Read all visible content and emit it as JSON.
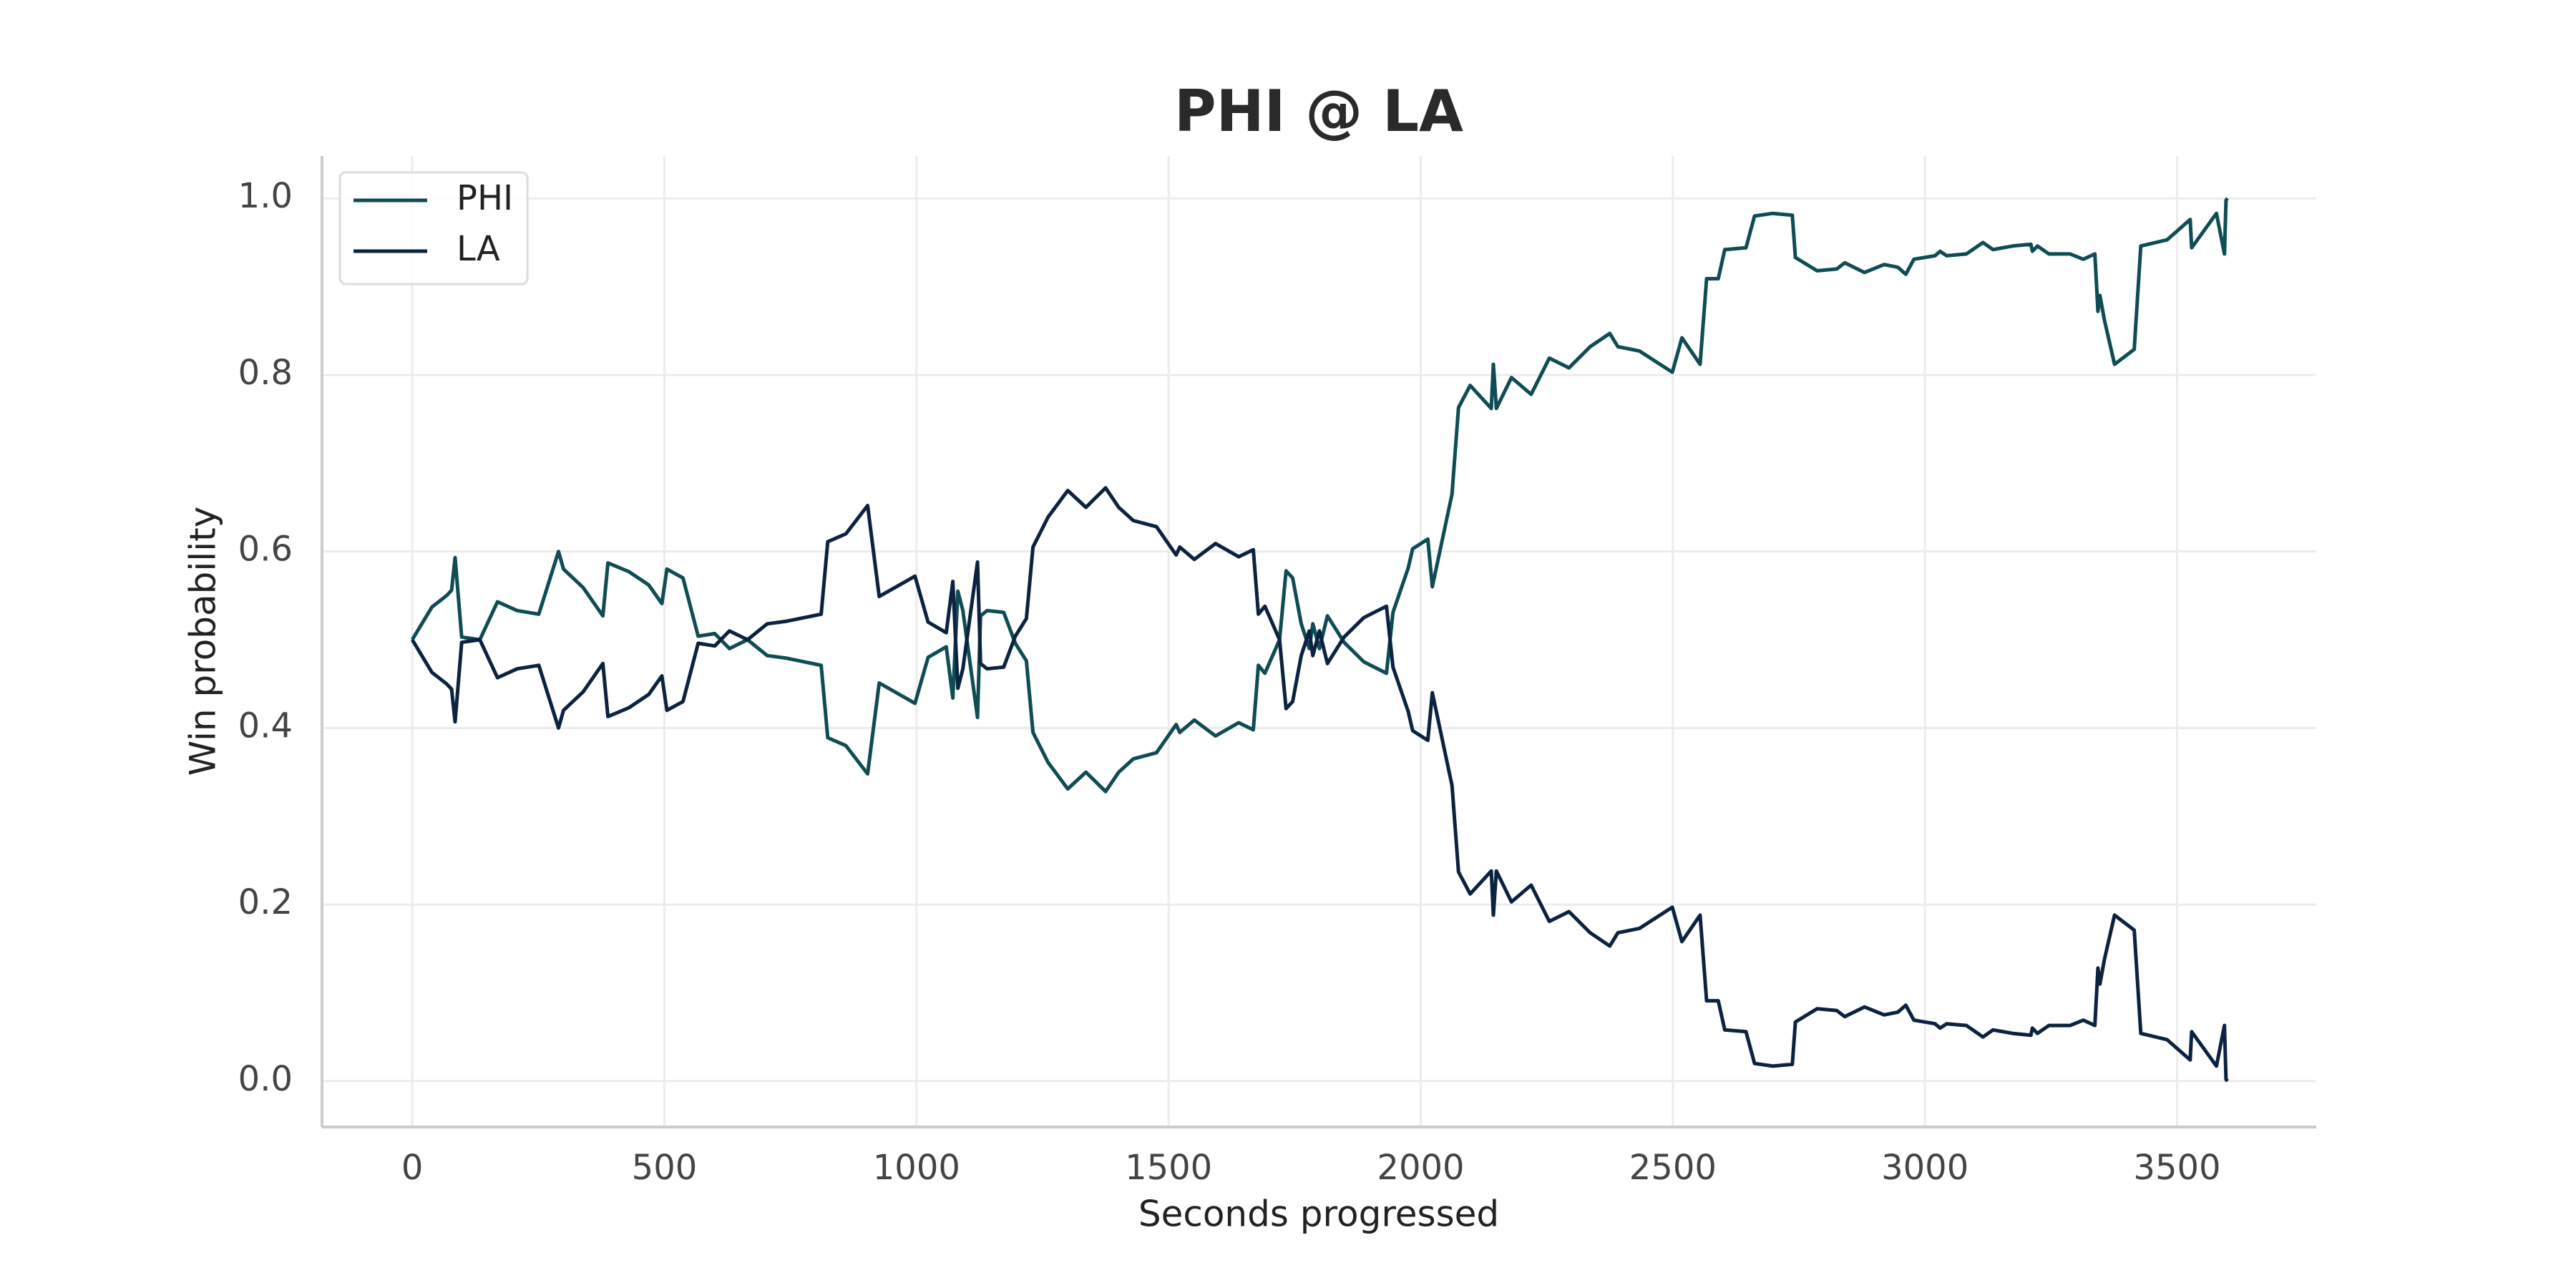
{
  "chart_data": {
    "type": "line",
    "title": "PHI @ LA",
    "x_label": "Seconds progressed",
    "y_label": "Win probability",
    "x": [
      0,
      39,
      68,
      78,
      85,
      98,
      134,
      169,
      208,
      251,
      290,
      300,
      339,
      378,
      388,
      430,
      469,
      495,
      505,
      537,
      567,
      600,
      629,
      665,
      704,
      743,
      811,
      824,
      860,
      903,
      926,
      997,
      1023,
      1059,
      1072,
      1082,
      1092,
      1121,
      1127,
      1140,
      1173,
      1196,
      1218,
      1231,
      1261,
      1300,
      1336,
      1375,
      1401,
      1430,
      1476,
      1515,
      1522,
      1551,
      1593,
      1639,
      1668,
      1678,
      1691,
      1720,
      1733,
      1746,
      1763,
      1779,
      1786,
      1799,
      1815,
      1848,
      1887,
      1932,
      1945,
      1975,
      1984,
      2014,
      2023,
      2062,
      2075,
      2098,
      2140,
      2144,
      2150,
      2180,
      2219,
      2255,
      2294,
      2336,
      2375,
      2391,
      2434,
      2499,
      2518,
      2554,
      2567,
      2590,
      2603,
      2645,
      2662,
      2698,
      2737,
      2743,
      2786,
      2825,
      2841,
      2880,
      2919,
      2946,
      2962,
      2978,
      3020,
      3030,
      3043,
      3082,
      3115,
      3135,
      3174,
      3210,
      3213,
      3223,
      3246,
      3288,
      3314,
      3337,
      3343,
      3347,
      3356,
      3376,
      3415,
      3428,
      3480,
      3526,
      3529,
      3578,
      3594,
      3597,
      3600
    ],
    "series": [
      {
        "name": "PHI",
        "color": "#0f4c54",
        "values": [
          0.5,
          0.537,
          0.55,
          0.556,
          0.593,
          0.503,
          0.5,
          0.543,
          0.533,
          0.529,
          0.6,
          0.58,
          0.559,
          0.527,
          0.587,
          0.577,
          0.562,
          0.541,
          0.58,
          0.57,
          0.504,
          0.507,
          0.49,
          0.5,
          0.482,
          0.479,
          0.471,
          0.389,
          0.38,
          0.348,
          0.451,
          0.428,
          0.48,
          0.492,
          0.434,
          0.555,
          0.533,
          0.412,
          0.527,
          0.533,
          0.531,
          0.496,
          0.476,
          0.395,
          0.361,
          0.331,
          0.35,
          0.328,
          0.35,
          0.365,
          0.372,
          0.404,
          0.395,
          0.409,
          0.391,
          0.406,
          0.398,
          0.471,
          0.462,
          0.5,
          0.578,
          0.57,
          0.518,
          0.49,
          0.518,
          0.49,
          0.527,
          0.497,
          0.475,
          0.462,
          0.531,
          0.581,
          0.603,
          0.614,
          0.56,
          0.665,
          0.763,
          0.788,
          0.762,
          0.812,
          0.762,
          0.797,
          0.778,
          0.819,
          0.808,
          0.832,
          0.847,
          0.832,
          0.827,
          0.803,
          0.842,
          0.812,
          0.909,
          0.909,
          0.942,
          0.944,
          0.98,
          0.983,
          0.981,
          0.933,
          0.918,
          0.92,
          0.927,
          0.916,
          0.925,
          0.922,
          0.914,
          0.931,
          0.935,
          0.94,
          0.935,
          0.937,
          0.95,
          0.942,
          0.946,
          0.948,
          0.94,
          0.946,
          0.937,
          0.937,
          0.931,
          0.937,
          0.872,
          0.89,
          0.862,
          0.812,
          0.829,
          0.946,
          0.953,
          0.976,
          0.944,
          0.983,
          0.937,
          0.998,
          1.0
        ]
      },
      {
        "name": "LA",
        "color": "#0c2340",
        "values": [
          0.5,
          0.463,
          0.45,
          0.444,
          0.407,
          0.497,
          0.5,
          0.457,
          0.467,
          0.471,
          0.4,
          0.42,
          0.441,
          0.473,
          0.413,
          0.423,
          0.438,
          0.459,
          0.42,
          0.43,
          0.496,
          0.493,
          0.51,
          0.5,
          0.518,
          0.521,
          0.529,
          0.611,
          0.62,
          0.652,
          0.549,
          0.572,
          0.52,
          0.508,
          0.566,
          0.445,
          0.467,
          0.588,
          0.473,
          0.467,
          0.469,
          0.504,
          0.524,
          0.605,
          0.639,
          0.669,
          0.65,
          0.672,
          0.65,
          0.635,
          0.628,
          0.596,
          0.605,
          0.591,
          0.609,
          0.594,
          0.602,
          0.529,
          0.538,
          0.5,
          0.422,
          0.43,
          0.482,
          0.51,
          0.482,
          0.51,
          0.473,
          0.503,
          0.525,
          0.538,
          0.469,
          0.419,
          0.397,
          0.386,
          0.44,
          0.335,
          0.237,
          0.212,
          0.238,
          0.188,
          0.238,
          0.203,
          0.222,
          0.181,
          0.192,
          0.168,
          0.153,
          0.168,
          0.173,
          0.197,
          0.158,
          0.188,
          0.091,
          0.091,
          0.058,
          0.056,
          0.02,
          0.017,
          0.019,
          0.067,
          0.082,
          0.08,
          0.073,
          0.084,
          0.075,
          0.078,
          0.086,
          0.069,
          0.065,
          0.06,
          0.065,
          0.063,
          0.05,
          0.058,
          0.054,
          0.052,
          0.06,
          0.054,
          0.063,
          0.063,
          0.069,
          0.063,
          0.128,
          0.11,
          0.138,
          0.188,
          0.171,
          0.054,
          0.047,
          0.024,
          0.056,
          0.017,
          0.063,
          0.002,
          0
        ]
      }
    ],
    "xlim": [
      -179,
      3776
    ],
    "xticks": [
      0,
      500,
      1000,
      1500,
      2000,
      2500,
      3000,
      3500
    ],
    "ylim": [
      -0.052,
      1.048
    ],
    "yticks": [
      {
        "value": 0,
        "label": "0.0"
      },
      0.2,
      0.4,
      0.6,
      0.8,
      {
        "value": 1,
        "label": "1.0"
      }
    ],
    "grid": true,
    "legend": "upper left"
  }
}
